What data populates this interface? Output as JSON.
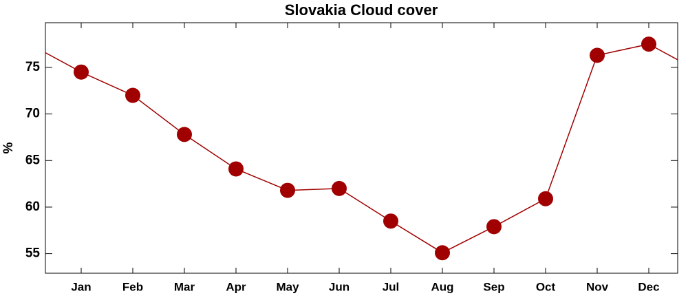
{
  "chart_data": {
    "type": "line",
    "title": "Slovakia Cloud cover",
    "y_label": "%",
    "categories": [
      "Jan",
      "Feb",
      "Mar",
      "Apr",
      "May",
      "Jun",
      "Jul",
      "Aug",
      "Sep",
      "Oct",
      "Nov",
      "Dec"
    ],
    "series": [
      {
        "name": "Cloud cover",
        "color": "#a00000",
        "values": [
          74.5,
          72.0,
          67.8,
          64.1,
          61.8,
          62.0,
          58.5,
          55.1,
          57.9,
          60.9,
          76.3,
          77.5
        ]
      }
    ],
    "ylim": [
      52.9,
      79.8
    ],
    "yticks": [
      55,
      60,
      65,
      70,
      75
    ],
    "grid": false
  }
}
